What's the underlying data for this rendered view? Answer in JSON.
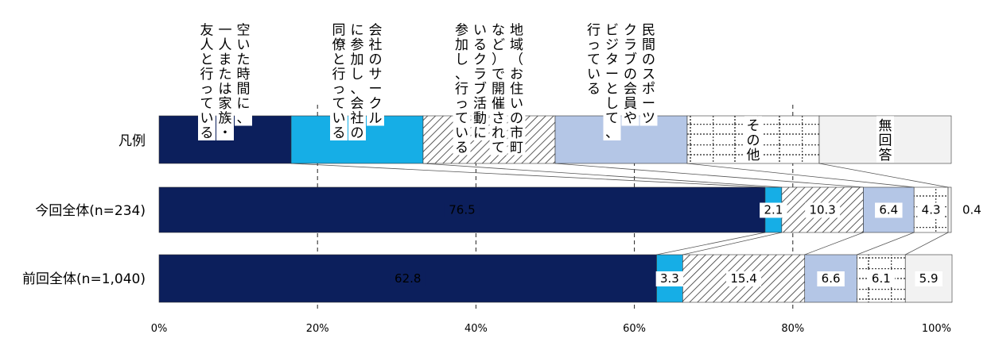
{
  "chart_data": {
    "type": "stacked-bar-100",
    "orientation": "horizontal",
    "legend_row_label": "凡例",
    "legend_placement": "top",
    "categories": [
      "空いた時間に、一人または家族・友人と行っている",
      "会社のサークルに参加し、会社の同僚と行っている",
      "地域（お住いの市町など）で開催されているクラブ活動に参加し、行っている",
      "民間のスポーツクラブの会員やビジターとして、行っている",
      "その他",
      "無回答"
    ],
    "legend_lines": [
      [
        "空いた時間に、",
        "一人または家族・",
        "友人と行っている"
      ],
      [
        "会社のサークル",
        "に参加し、会社の",
        "同僚と行っている"
      ],
      [
        "地域（お住いの市町",
        "など）で開催されて",
        "いるクラブ活動に",
        "参加し、行っている"
      ],
      [
        "民間のスポーツ",
        "クラブの会員や",
        "ビジターとして、",
        "行っている"
      ],
      [
        "その他"
      ],
      [
        "無回答"
      ]
    ],
    "series": [
      {
        "name": "今回全体(n=234)",
        "values": [
          76.5,
          2.1,
          10.3,
          6.4,
          4.3,
          0.4
        ],
        "labels": [
          "76.5",
          "2.1",
          "10.3",
          "6.4",
          "4.3",
          "0.4"
        ]
      },
      {
        "name": "前回全体(n=1,040)",
        "values": [
          62.8,
          3.3,
          15.4,
          6.6,
          6.1,
          5.9
        ],
        "labels": [
          "62.8",
          "3.3",
          "15.4",
          "6.6",
          "6.1",
          "5.9"
        ]
      }
    ],
    "x_ticks": [
      "0%",
      "20%",
      "40%",
      "60%",
      "80%",
      "100%"
    ],
    "xlim": [
      0,
      100
    ],
    "colors": [
      "#0c1f5c",
      "#16aee6",
      "hatch",
      "#b4c6e6",
      "dotted",
      "#f2f2f2"
    ],
    "grid": true
  }
}
